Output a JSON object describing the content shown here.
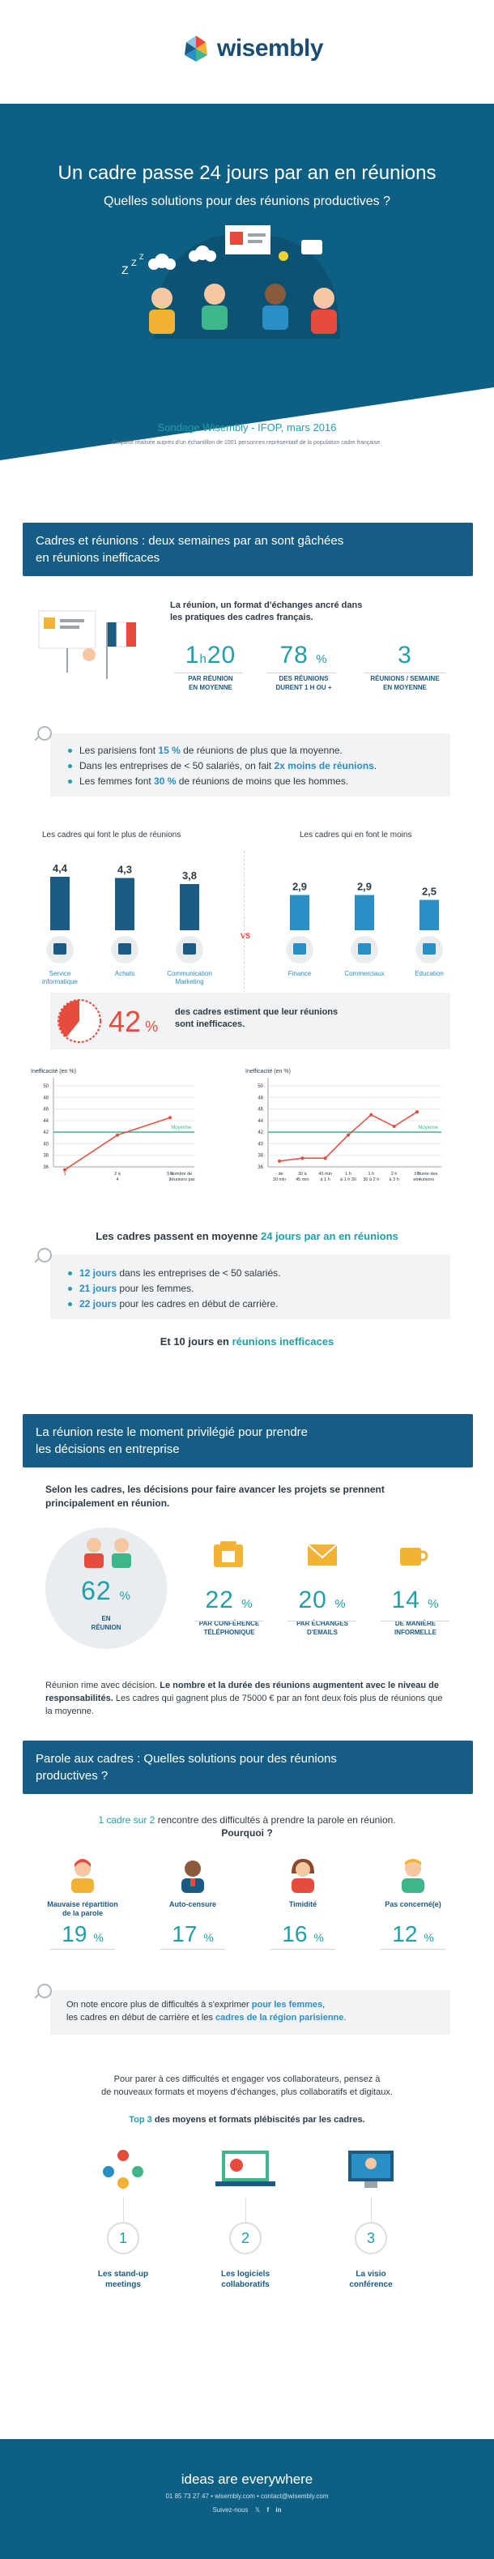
{
  "brand": {
    "name": "wisembly",
    "colors": {
      "navy": "#0d5f83",
      "teal": "#1f9fa8",
      "red": "#e64b3c",
      "green": "#3fb58a"
    }
  },
  "hero": {
    "title": "Un cadre passe 24 jours par an en réunions",
    "subtitle": "Quelles solutions pour des réunions productives ?"
  },
  "survey": {
    "title": "Sondage Wisembly - IFOP, mars 2016",
    "note": "Enquête réalisée auprès d'un échantillon de 1001 personnes représentatif de la population cadre française."
  },
  "section1": {
    "banner": [
      "Cadres et réunions : deux semaines par an sont gâchées",
      "en réunions inefficaces"
    ],
    "intro": [
      "La réunion, un format d'échanges ancré dans",
      "les pratiques des cadres français."
    ],
    "stats": [
      {
        "value": "1",
        "unit": "h",
        "value2": "20",
        "label": [
          "PAR RÉUNION",
          "EN MOYENNE"
        ]
      },
      {
        "value": "78",
        "unit": "%",
        "label": [
          "DES RÉUNIONS",
          "DURENT 1 H OU +"
        ]
      },
      {
        "value": "3",
        "unit": "",
        "label": [
          "RÉUNIONS / SEMAINE",
          "EN MOYENNE"
        ]
      }
    ],
    "bullets": [
      {
        "pre": "Les parisiens font ",
        "bold": "15 %",
        "post": " de réunions de plus que la moyenne."
      },
      {
        "pre": "Dans les entreprises de < 50 salariés, on fait ",
        "bold": "2x moins de réunions",
        "post": "."
      },
      {
        "pre": "Les femmes font ",
        "bold": "30 %",
        "post": " de réunions de moins que les hommes."
      }
    ],
    "bars_left_title": "Les cadres qui font le plus de réunions",
    "bars_right_title": "Les cadres qui en font le moins",
    "vs": "VS",
    "chart_data": [
      {
        "type": "bar",
        "categories": [
          "Service informatique",
          "Achats",
          "Communication Marketing"
        ],
        "values": [
          4.4,
          4.3,
          3.8
        ],
        "labels": [
          "4,4",
          "4,3",
          "3,8"
        ]
      },
      {
        "type": "bar",
        "categories": [
          "Finance",
          "Commerciaux",
          "Education"
        ],
        "values": [
          2.9,
          2.9,
          2.5
        ],
        "labels": [
          "2,9",
          "2,9",
          "2,5"
        ]
      },
      {
        "type": "line",
        "ylabel": "Inefficacité (en %)",
        "yticks": [
          "50",
          "48",
          "46",
          "44",
          "42",
          "40",
          "38",
          "36"
        ],
        "x": [
          "1",
          "2 à 4",
          "5 à 9"
        ],
        "xlabel": "Nombre de réunions par semaine",
        "values": [
          35.5,
          41.5,
          44.5
        ],
        "reference": {
          "label": "Moyenne",
          "value": 42
        }
      },
      {
        "type": "line",
        "ylabel": "Inefficacité (en %)",
        "yticks": [
          "50",
          "48",
          "46",
          "44",
          "42",
          "40",
          "38",
          "36"
        ],
        "x": [
          "- de 30 min",
          "30 à 45 min",
          "45 min à 1 h",
          "1 h à 1 h 30",
          "1 h 30 à 2 h",
          "2 h à 3 h",
          "3 h et +"
        ],
        "xlabel": "Durée des réunions",
        "values": [
          37,
          37.5,
          37.5,
          41.5,
          45,
          43,
          45.5
        ],
        "reference": {
          "label": "Moyenne",
          "value": 42
        }
      }
    ],
    "ineff": {
      "value": "42",
      "unit": "%",
      "text": [
        "des cadres estiment que leur réunions",
        "sont inefficaces."
      ]
    },
    "days_line": {
      "pre": "Les cadres passent en moyenne ",
      "hl": "24 jours par an en réunions"
    },
    "days_bullets": [
      {
        "bold": "12 jours",
        "post": " dans les entreprises de < 50 salariés."
      },
      {
        "bold": "21 jours",
        "post": " pour les femmes."
      },
      {
        "bold": "22 jours",
        "post": " pour les cadres en début de carrière."
      }
    ],
    "ineff_days": {
      "pre": "Et 10 jours en ",
      "hl": "réunions inefficaces"
    }
  },
  "section2": {
    "banner": [
      "La réunion reste le moment privilégié pour prendre",
      "les décisions en entreprise"
    ],
    "intro": [
      "Selon les cadres, les décisions pour faire avancer les projets se prennent",
      "principalement en réunion."
    ],
    "stats": [
      {
        "value": "62",
        "unit": "%",
        "label": [
          "EN",
          "RÉUNION"
        ]
      },
      {
        "value": "22",
        "unit": "%",
        "label": [
          "PAR CONFÉRENCE",
          "TÉLÉPHONIQUE"
        ]
      },
      {
        "value": "20",
        "unit": "%",
        "label": [
          "PAR ÉCHANGES",
          "D'EMAILS"
        ]
      },
      {
        "value": "14",
        "unit": "%",
        "label": [
          "DE MANIÈRE",
          "INFORMELLE"
        ]
      }
    ],
    "outro": {
      "pre": "Réunion rime avec décision. ",
      "bold": "Le nombre et la durée des réunions augmentent avec le niveau de responsabilités.",
      "post": " Les cadres qui gagnent plus de 75000 € par an font deux fois plus de réunions que la moyenne."
    }
  },
  "section3": {
    "banner": [
      "Parole aux cadres : Quelles solutions pour des réunions",
      "productives ?"
    ],
    "intro": {
      "hl": "1 cadre sur 2",
      "post": " rencontre des difficultés à prendre la parole en réunion.",
      "line2": "Pourquoi ?"
    },
    "reasons": [
      {
        "label": [
          "Mauvaise répartition",
          "de la parole"
        ],
        "value": "19",
        "unit": "%"
      },
      {
        "label": [
          "Auto-censure"
        ],
        "value": "17",
        "unit": "%"
      },
      {
        "label": [
          "Timidité"
        ],
        "value": "16",
        "unit": "%"
      },
      {
        "label": [
          "Pas concerné(e)"
        ],
        "value": "12",
        "unit": "%"
      }
    ],
    "note": {
      "p1": "On note encore plus de difficultés à s'exprimer ",
      "b1": "pour les femmes",
      "p2": ",",
      "p3": "les cadres en début de carrière et les ",
      "b2": "cadres de la région parisienne",
      "p4": "."
    },
    "engage": [
      "Pour parer à ces difficultés et engager vos collaborateurs, pensez à",
      "de nouveaux formats et moyens d'échanges, plus collaboratifs et digitaux."
    ],
    "top3": {
      "hl": "Top 3",
      "post": " des moyens et formats plébiscités par les cadres."
    },
    "tools": [
      {
        "n": "1",
        "label": [
          "Les stand-up",
          "meetings"
        ]
      },
      {
        "n": "2",
        "label": [
          "Les logiciels",
          "collaboratifs"
        ]
      },
      {
        "n": "3",
        "label": [
          "La visio",
          "conférence"
        ]
      }
    ]
  },
  "footer": {
    "tagline": "ideas are everywhere",
    "contact": "01 85 73 27 47  •  wisembly.com  •  contact@wisembly.com",
    "follow": "Suivez-nous"
  }
}
